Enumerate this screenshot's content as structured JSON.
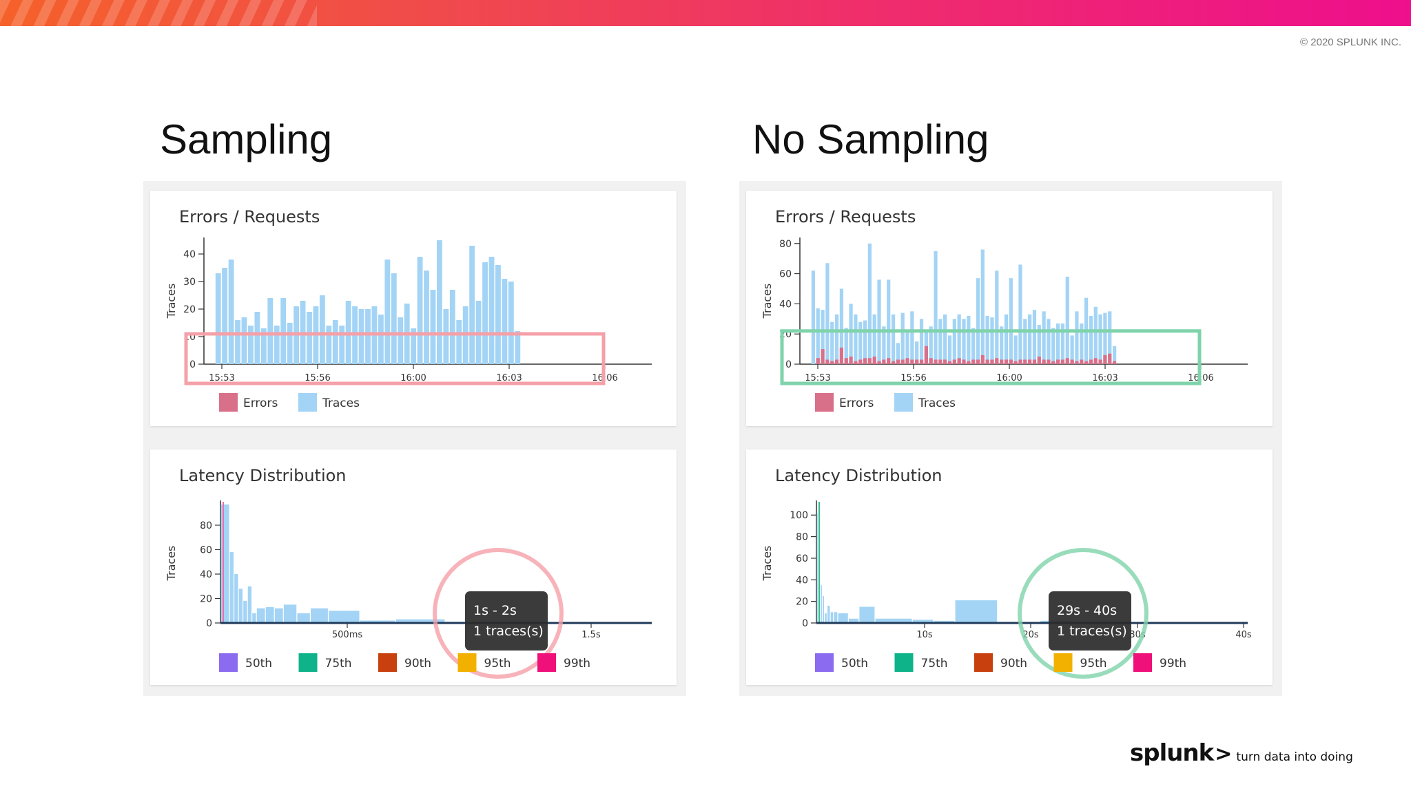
{
  "copyright": "© 2020 SPLUNK INC.",
  "brand": {
    "name": "splunk",
    "symbol": ">",
    "tagline": "turn data into doing"
  },
  "colors": {
    "traces": "#a3d4f5",
    "errors": "#d9708a",
    "pct50": "#8b6cf0",
    "pct75": "#0fb38a",
    "pct90": "#c8400e",
    "pct95": "#f2b100",
    "pct99": "#f0107a",
    "highlight_left": "#f5a0a8",
    "highlight_right": "#7fd3aa"
  },
  "panels": [
    {
      "title": "Sampling",
      "errors_chart": {
        "title": "Errors / Requests",
        "ylabel": "Traces",
        "yticks": [
          0,
          10,
          20,
          30,
          40
        ],
        "ylim": [
          0,
          46
        ],
        "xticks": [
          "15:53",
          "15:56",
          "16:00",
          "16:03",
          "16:06"
        ],
        "legend": [
          "Errors",
          "Traces"
        ],
        "traces": [
          33,
          35,
          38,
          16,
          17,
          14,
          19,
          13,
          24,
          14,
          24,
          15,
          21,
          23,
          19,
          21,
          25,
          14,
          16,
          14,
          23,
          21,
          20,
          20,
          21,
          18,
          38,
          33,
          17,
          22,
          13,
          39,
          34,
          27,
          45,
          20,
          27,
          16,
          21,
          43,
          23,
          37,
          39,
          36,
          31,
          30,
          12
        ],
        "errors": [
          0,
          0,
          0,
          0,
          0,
          0,
          0,
          0,
          0,
          0,
          0,
          0,
          0,
          0,
          0,
          0,
          0,
          0,
          0,
          0,
          0,
          0,
          0,
          0,
          0,
          0,
          0,
          0,
          0,
          0,
          0,
          0,
          0,
          0,
          0,
          0,
          0,
          0,
          0,
          0,
          0,
          0,
          0,
          0,
          0,
          0,
          0
        ]
      },
      "latency_chart": {
        "title": "Latency Distribution",
        "ylabel": "Traces",
        "yticks": [
          0,
          20,
          40,
          60,
          80
        ],
        "ylim": [
          0,
          98
        ],
        "xticks": [
          "500ms",
          "1.5s"
        ],
        "bins": [
          [
            0,
            2,
            97
          ],
          [
            2,
            3,
            58
          ],
          [
            3,
            4,
            40
          ],
          [
            4,
            5,
            28
          ],
          [
            5,
            6,
            18
          ],
          [
            6,
            7,
            30
          ],
          [
            7,
            8,
            8
          ],
          [
            8,
            10,
            12
          ],
          [
            10,
            12,
            13
          ],
          [
            12,
            14,
            12
          ],
          [
            14,
            17,
            15
          ],
          [
            17,
            20,
            8
          ],
          [
            20,
            24,
            12
          ],
          [
            24,
            31,
            10
          ],
          [
            31,
            39,
            2
          ],
          [
            39,
            50,
            3
          ],
          [
            50,
            58,
            1
          ]
        ],
        "xlim": [
          0,
          96
        ],
        "legend": [
          "50th",
          "75th",
          "90th",
          "95th",
          "99th"
        ],
        "tooltip": {
          "range": "1s - 2s",
          "count": "1 traces(s)"
        }
      }
    },
    {
      "title": "No Sampling",
      "errors_chart": {
        "title": "Errors / Requests",
        "ylabel": "Traces",
        "yticks": [
          0,
          20,
          40,
          60,
          80
        ],
        "ylim": [
          0,
          84
        ],
        "xticks": [
          "15:53",
          "15:56",
          "16:00",
          "16:03",
          "16:06"
        ],
        "legend": [
          "Errors",
          "Traces"
        ],
        "traces": [
          62,
          37,
          36,
          67,
          28,
          33,
          50,
          24,
          40,
          33,
          28,
          29,
          80,
          33,
          56,
          25,
          56,
          33,
          14,
          34,
          22,
          35,
          15,
          30,
          21,
          25,
          75,
          30,
          33,
          19,
          30,
          33,
          30,
          32,
          24,
          57,
          76,
          32,
          31,
          62,
          25,
          33,
          57,
          19,
          66,
          30,
          33,
          36,
          26,
          35,
          30,
          24,
          27,
          27,
          58,
          19,
          35,
          27,
          44,
          32,
          38,
          33,
          34,
          35,
          12
        ],
        "errors": [
          0,
          4,
          10,
          3,
          2,
          3,
          11,
          4,
          5,
          2,
          3,
          4,
          4,
          5,
          2,
          3,
          4,
          2,
          3,
          3,
          4,
          3,
          3,
          3,
          12,
          4,
          3,
          3,
          3,
          2,
          3,
          4,
          3,
          2,
          3,
          3,
          6,
          3,
          3,
          4,
          3,
          3,
          3,
          2,
          3,
          3,
          3,
          3,
          5,
          3,
          3,
          2,
          3,
          3,
          4,
          3,
          2,
          3,
          2,
          3,
          4,
          3,
          6,
          7,
          2
        ]
      },
      "latency_chart": {
        "title": "Latency Distribution",
        "ylabel": "Traces",
        "yticks": [
          0,
          20,
          40,
          60,
          80,
          100
        ],
        "ylim": [
          0,
          111
        ],
        "xticks": [
          "10s",
          "20s",
          "30s",
          "40s"
        ],
        "bins": [
          [
            0,
            0.15,
            102
          ],
          [
            0.15,
            0.35,
            65
          ],
          [
            0.35,
            0.55,
            35
          ],
          [
            0.55,
            0.75,
            25
          ],
          [
            0.75,
            1,
            9
          ],
          [
            1,
            1.3,
            16
          ],
          [
            1.3,
            1.6,
            10
          ],
          [
            1.6,
            2,
            10
          ],
          [
            2,
            3,
            9
          ],
          [
            3,
            4,
            4
          ],
          [
            4,
            5.5,
            15
          ],
          [
            5.5,
            9,
            4
          ],
          [
            9,
            11,
            3
          ],
          [
            11,
            13,
            2
          ],
          [
            13,
            17,
            21
          ],
          [
            17,
            21,
            1
          ],
          [
            21,
            24,
            2
          ],
          [
            24,
            28,
            1
          ]
        ],
        "xlim": [
          0,
          40.5
        ],
        "legend": [
          "50th",
          "75th",
          "90th",
          "95th",
          "99th"
        ],
        "tooltip": {
          "range": "29s - 40s",
          "count": "1 traces(s)"
        }
      }
    }
  ]
}
